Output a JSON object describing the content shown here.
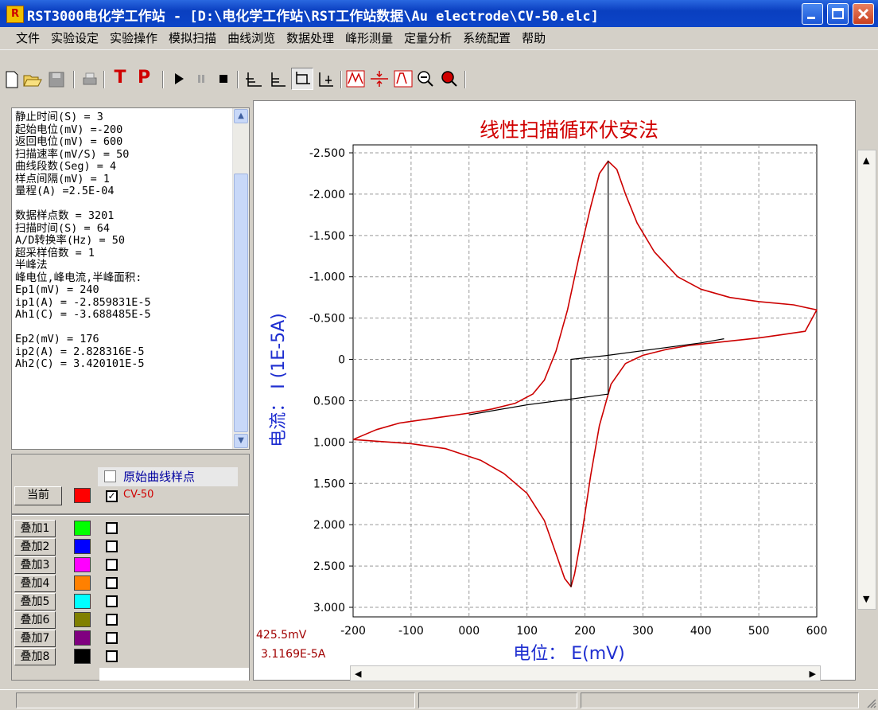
{
  "window": {
    "title": "RST3000电化学工作站 - [D:\\电化学工作站\\RST工作站数据\\Au electrode\\CV-50.elc]"
  },
  "menu": [
    "文件",
    "实验设定",
    "实验操作",
    "模拟扫描",
    "曲线浏览",
    "数据处理",
    "峰形测量",
    "定量分析",
    "系统配置",
    "帮助"
  ],
  "params_text": "静止时间(S) = 3\n起始电位(mV) =-200\n返回电位(mV) = 600\n扫描速率(mV/S) = 50\n曲线段数(Seg) = 4\n样点间隔(mV) = 1\n量程(A) =2.5E-04\n\n数据样点数 = 3201\n扫描时间(S) = 64\nA/D转换率(Hz) = 50\n超采样倍数 = 1\n半峰法\n峰电位,峰电流,半峰面积:\nEp1(mV) = 240\nip1(A) = -2.859831E-5\nAh1(C) = -3.688485E-5\n\nEp2(mV) = 176\nip2(A) = 2.828316E-5\nAh2(C) = 3.420101E-5",
  "curve_panel": {
    "raw_points_label": "原始曲线样点",
    "current_button": "当前",
    "current_curve_name": "CV-50",
    "current_color": "#ff0000",
    "overlays": [
      {
        "label": "叠加1",
        "color": "#00ff00"
      },
      {
        "label": "叠加2",
        "color": "#0000ff"
      },
      {
        "label": "叠加3",
        "color": "#ff00ff"
      },
      {
        "label": "叠加4",
        "color": "#ff8000"
      },
      {
        "label": "叠加5",
        "color": "#00ffff"
      },
      {
        "label": "叠加6",
        "color": "#808000"
      },
      {
        "label": "叠加7",
        "color": "#800080"
      },
      {
        "label": "叠加8",
        "color": "#000000"
      }
    ]
  },
  "cursor_readout": {
    "potential": "425.5mV",
    "current": "3.1169E-5A"
  },
  "chart_data": {
    "type": "line",
    "title": "线性扫描循环伏安法",
    "xlabel": "电位： E(mV)",
    "ylabel": "电流： I (1E-5A)",
    "xlim": [
      -200,
      600
    ],
    "ylim": [
      -2.5,
      3.0
    ],
    "y_inverted": true,
    "grid": true,
    "x_ticks": [
      "-200",
      "-100",
      "000",
      "100",
      "200",
      "300",
      "400",
      "500",
      "600"
    ],
    "y_ticks": [
      "-2.500",
      "-2.000",
      "-1.500",
      "-1.000",
      "-0.500",
      "0",
      "0.500",
      "1.000",
      "1.500",
      "2.000",
      "2.500",
      "3.000"
    ],
    "series": [
      {
        "color": "#cc0000",
        "points": [
          [
            -200,
            0.97
          ],
          [
            -160,
            0.85
          ],
          [
            -120,
            0.77
          ],
          [
            -80,
            0.73
          ],
          [
            -40,
            0.69
          ],
          [
            0,
            0.65
          ],
          [
            40,
            0.6
          ],
          [
            80,
            0.53
          ],
          [
            110,
            0.42
          ],
          [
            130,
            0.25
          ],
          [
            150,
            -0.1
          ],
          [
            170,
            -0.6
          ],
          [
            190,
            -1.25
          ],
          [
            210,
            -1.85
          ],
          [
            225,
            -2.25
          ],
          [
            240,
            -2.4
          ],
          [
            255,
            -2.3
          ],
          [
            270,
            -2.0
          ],
          [
            290,
            -1.65
          ],
          [
            320,
            -1.3
          ],
          [
            360,
            -1.0
          ],
          [
            400,
            -0.85
          ],
          [
            450,
            -0.75
          ],
          [
            500,
            -0.7
          ],
          [
            560,
            -0.66
          ],
          [
            600,
            -0.6
          ],
          [
            580,
            -0.34
          ],
          [
            540,
            -0.3
          ],
          [
            500,
            -0.26
          ],
          [
            460,
            -0.23
          ],
          [
            420,
            -0.2
          ],
          [
            380,
            -0.17
          ],
          [
            340,
            -0.12
          ],
          [
            300,
            -0.05
          ],
          [
            270,
            0.05
          ],
          [
            245,
            0.3
          ],
          [
            225,
            0.8
          ],
          [
            210,
            1.4
          ],
          [
            195,
            2.1
          ],
          [
            182,
            2.6
          ],
          [
            176,
            2.75
          ],
          [
            165,
            2.65
          ],
          [
            150,
            2.35
          ],
          [
            130,
            1.95
          ],
          [
            100,
            1.62
          ],
          [
            60,
            1.38
          ],
          [
            20,
            1.22
          ],
          [
            -40,
            1.08
          ],
          [
            -100,
            1.02
          ],
          [
            -160,
            0.99
          ],
          [
            -200,
            0.97
          ]
        ]
      },
      {
        "color": "#000000",
        "points": [
          [
            0,
            0.67
          ],
          [
            100,
            0.55
          ],
          [
            176,
            0.48
          ],
          [
            176,
            2.75
          ],
          [
            176,
            0.48
          ],
          [
            176,
            0.0
          ],
          [
            240,
            -0.05
          ],
          [
            240,
            -2.4
          ],
          [
            240,
            0.42
          ],
          [
            176,
            0.48
          ],
          [
            240,
            0.42
          ],
          [
            240,
            -0.05
          ],
          [
            400,
            -0.2
          ],
          [
            440,
            -0.25
          ]
        ]
      }
    ]
  }
}
